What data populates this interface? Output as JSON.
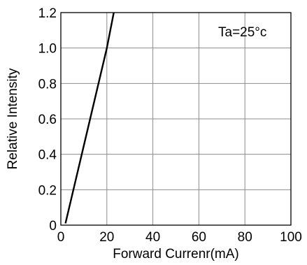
{
  "chart_data": {
    "type": "line",
    "title": "",
    "xlabel": "Forward Currenr(mA)",
    "ylabel": "Relative Intensity",
    "xlim": [
      0,
      100
    ],
    "ylim": [
      0,
      1.2
    ],
    "x_ticks": [
      0,
      20,
      40,
      60,
      80,
      100
    ],
    "x_tick_labels": [
      "0",
      "20",
      "40",
      "60",
      "80",
      "100"
    ],
    "y_ticks": [
      0,
      0.2,
      0.4,
      0.6,
      0.8,
      1.0,
      1.2
    ],
    "y_tick_labels": [
      "0",
      "0.2",
      "0.4",
      "0.6",
      "0.8",
      "1.0",
      "1.2"
    ],
    "grid": true,
    "annotation": "Ta=25°c",
    "series": [
      {
        "x": [
          2,
          20,
          23
        ],
        "y": [
          0.01,
          1.0,
          1.2
        ]
      }
    ],
    "line_color": "#000000"
  }
}
